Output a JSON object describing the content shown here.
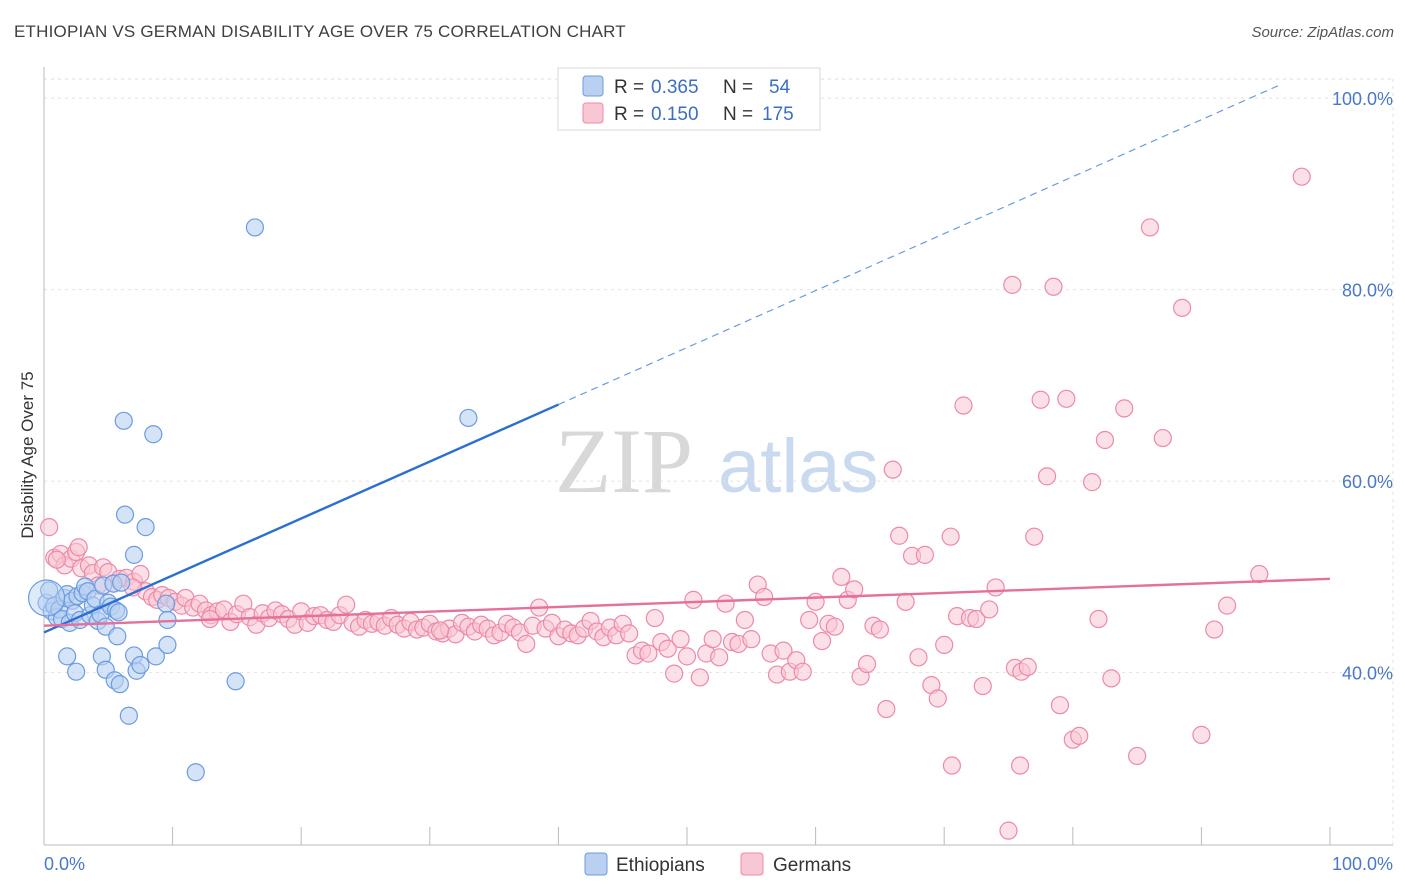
{
  "header": {
    "title": "ETHIOPIAN VS GERMAN DISABILITY AGE OVER 75 CORRELATION CHART",
    "source": "Source: ZipAtlas.com"
  },
  "watermark": {
    "zip": "ZIP",
    "atlas": "atlas"
  },
  "chart_data": {
    "type": "scatter",
    "ylabel": "Disability Age Over 75",
    "xlim": [
      0,
      100
    ],
    "ylim": [
      22,
      102
    ],
    "x_tick_labels": [
      "0.0%",
      "100.0%"
    ],
    "y_ticks": [
      40,
      60,
      80,
      100
    ],
    "y_tick_labels": [
      "40.0%",
      "60.0%",
      "80.0%",
      "100.0%"
    ],
    "grid": true,
    "legend_position": "top-center",
    "legend": [
      {
        "r_label": "R =",
        "r_value": "0.365",
        "n_label": "N =",
        "n_value": "54"
      },
      {
        "r_label": "R =",
        "r_value": "0.150",
        "n_label": "N =",
        "n_value": "175"
      }
    ],
    "series": [
      {
        "name": "Ethiopians",
        "color": "#6c9be0",
        "fill": "#b9d0f1",
        "trend": {
          "x0": 0,
          "y0": 44.2,
          "x1": 40,
          "y1": 68.0,
          "dash_to_x": 100,
          "dash_to_y": 103.7,
          "color": "#2b6fd0"
        },
        "points": [
          [
            0.2,
            47.3
          ],
          [
            0.4,
            48.6
          ],
          [
            0.6,
            46.4
          ],
          [
            0.8,
            47.0
          ],
          [
            1.0,
            45.8
          ],
          [
            1.2,
            46.6
          ],
          [
            1.4,
            45.6
          ],
          [
            1.6,
            47.8
          ],
          [
            1.8,
            48.2
          ],
          [
            2.0,
            45.2
          ],
          [
            2.2,
            47.5
          ],
          [
            2.4,
            46.2
          ],
          [
            2.6,
            48.0
          ],
          [
            2.8,
            45.5
          ],
          [
            3.0,
            48.3
          ],
          [
            3.2,
            49.0
          ],
          [
            3.4,
            48.5
          ],
          [
            3.6,
            46.0
          ],
          [
            3.8,
            47.0
          ],
          [
            4.0,
            47.7
          ],
          [
            4.2,
            45.4
          ],
          [
            4.4,
            46.1
          ],
          [
            4.6,
            49.1
          ],
          [
            4.8,
            44.8
          ],
          [
            5.0,
            47.3
          ],
          [
            5.2,
            46.9
          ],
          [
            5.4,
            49.3
          ],
          [
            5.6,
            46.5
          ],
          [
            5.8,
            46.3
          ],
          [
            6.0,
            49.4
          ],
          [
            1.8,
            41.7
          ],
          [
            2.5,
            40.1
          ],
          [
            4.5,
            41.7
          ],
          [
            4.8,
            40.3
          ],
          [
            5.5,
            39.2
          ],
          [
            5.9,
            38.8
          ],
          [
            6.6,
            35.5
          ],
          [
            7.2,
            40.2
          ],
          [
            7.0,
            41.8
          ],
          [
            7.5,
            40.8
          ],
          [
            8.7,
            41.7
          ],
          [
            9.6,
            42.9
          ],
          [
            11.8,
            29.6
          ],
          [
            14.9,
            39.1
          ],
          [
            6.3,
            56.5
          ],
          [
            7.9,
            55.2
          ],
          [
            7.0,
            52.3
          ],
          [
            6.2,
            66.3
          ],
          [
            8.5,
            64.9
          ],
          [
            16.4,
            86.5
          ],
          [
            33.0,
            66.6
          ],
          [
            9.5,
            47.2
          ],
          [
            9.6,
            45.5
          ],
          [
            5.7,
            43.8
          ]
        ]
      },
      {
        "name": "Germans",
        "color": "#ec8aa8",
        "fill": "#f9c6d4",
        "trend": {
          "x0": 0,
          "y0": 44.9,
          "x1": 100,
          "y1": 49.8,
          "color": "#e5709a"
        },
        "points": [
          [
            0.4,
            55.2
          ],
          [
            0.8,
            52.0
          ],
          [
            1.3,
            52.4
          ],
          [
            1.6,
            51.2
          ],
          [
            2.1,
            51.9
          ],
          [
            2.5,
            52.6
          ],
          [
            2.9,
            50.9
          ],
          [
            3.5,
            51.2
          ],
          [
            3.8,
            50.4
          ],
          [
            4.2,
            49.1
          ],
          [
            4.6,
            51.0
          ],
          [
            5.0,
            50.5
          ],
          [
            5.4,
            49.3
          ],
          [
            5.9,
            49.8
          ],
          [
            6.4,
            49.9
          ],
          [
            7.0,
            49.5
          ],
          [
            7.5,
            50.3
          ],
          [
            7.9,
            48.5
          ],
          [
            8.4,
            47.9
          ],
          [
            8.8,
            47.6
          ],
          [
            9.2,
            48.1
          ],
          [
            9.7,
            47.8
          ],
          [
            10.2,
            47.4
          ],
          [
            10.7,
            47.0
          ],
          [
            11.0,
            47.8
          ],
          [
            11.6,
            46.8
          ],
          [
            12.1,
            47.2
          ],
          [
            12.6,
            46.5
          ],
          [
            13.0,
            46.0
          ],
          [
            13.5,
            46.4
          ],
          [
            14.0,
            46.6
          ],
          [
            14.5,
            45.3
          ],
          [
            15.0,
            46.1
          ],
          [
            15.5,
            47.2
          ],
          [
            16.0,
            45.8
          ],
          [
            16.5,
            45.0
          ],
          [
            17.0,
            46.2
          ],
          [
            17.5,
            45.7
          ],
          [
            18.0,
            46.5
          ],
          [
            18.5,
            46.1
          ],
          [
            19.0,
            45.6
          ],
          [
            19.5,
            45.0
          ],
          [
            20.0,
            46.4
          ],
          [
            20.5,
            45.2
          ],
          [
            21.0,
            45.9
          ],
          [
            21.5,
            46.0
          ],
          [
            22.0,
            45.5
          ],
          [
            22.5,
            45.3
          ],
          [
            23.0,
            46.0
          ],
          [
            23.5,
            47.1
          ],
          [
            24.0,
            45.2
          ],
          [
            24.5,
            44.8
          ],
          [
            25.0,
            45.5
          ],
          [
            25.5,
            45.1
          ],
          [
            26.0,
            45.3
          ],
          [
            26.5,
            44.9
          ],
          [
            27.0,
            45.7
          ],
          [
            27.5,
            45.0
          ],
          [
            28.0,
            44.6
          ],
          [
            28.5,
            45.3
          ],
          [
            29.0,
            44.5
          ],
          [
            29.5,
            44.7
          ],
          [
            30.0,
            45.1
          ],
          [
            30.5,
            44.3
          ],
          [
            31.0,
            44.1
          ],
          [
            31.5,
            44.6
          ],
          [
            32.0,
            44.0
          ],
          [
            32.5,
            45.2
          ],
          [
            33.0,
            44.8
          ],
          [
            33.5,
            44.3
          ],
          [
            34.0,
            45.0
          ],
          [
            34.5,
            44.6
          ],
          [
            35.0,
            43.9
          ],
          [
            35.5,
            44.2
          ],
          [
            36.0,
            45.1
          ],
          [
            36.5,
            44.7
          ],
          [
            37.0,
            44.2
          ],
          [
            37.5,
            43.0
          ],
          [
            38.0,
            44.9
          ],
          [
            38.5,
            46.8
          ],
          [
            39.0,
            44.6
          ],
          [
            39.5,
            45.2
          ],
          [
            40.0,
            43.8
          ],
          [
            40.5,
            44.5
          ],
          [
            41.0,
            44.1
          ],
          [
            41.5,
            43.9
          ],
          [
            42.0,
            44.6
          ],
          [
            42.5,
            45.4
          ],
          [
            43.0,
            44.3
          ],
          [
            43.5,
            43.7
          ],
          [
            44.0,
            44.7
          ],
          [
            44.5,
            43.9
          ],
          [
            45.0,
            45.1
          ],
          [
            45.5,
            44.1
          ],
          [
            46.0,
            41.8
          ],
          [
            46.5,
            42.3
          ],
          [
            47.0,
            42.0
          ],
          [
            47.5,
            45.7
          ],
          [
            48.0,
            43.2
          ],
          [
            48.5,
            42.5
          ],
          [
            49.0,
            39.9
          ],
          [
            49.5,
            43.5
          ],
          [
            50.0,
            41.7
          ],
          [
            50.5,
            47.6
          ],
          [
            51.0,
            39.5
          ],
          [
            51.5,
            42.0
          ],
          [
            52.0,
            43.5
          ],
          [
            52.5,
            41.6
          ],
          [
            53.0,
            47.2
          ],
          [
            53.5,
            43.2
          ],
          [
            54.0,
            43.0
          ],
          [
            54.5,
            45.5
          ],
          [
            55.0,
            43.5
          ],
          [
            55.5,
            49.2
          ],
          [
            56.0,
            47.9
          ],
          [
            56.5,
            42.0
          ],
          [
            57.0,
            39.8
          ],
          [
            57.5,
            42.3
          ],
          [
            58.0,
            40.1
          ],
          [
            58.5,
            41.3
          ],
          [
            59.0,
            40.1
          ],
          [
            59.5,
            45.5
          ],
          [
            60.0,
            47.4
          ],
          [
            60.5,
            43.3
          ],
          [
            61.0,
            45.1
          ],
          [
            61.5,
            44.8
          ],
          [
            62.0,
            50.0
          ],
          [
            62.5,
            47.6
          ],
          [
            63.0,
            48.7
          ],
          [
            63.5,
            39.6
          ],
          [
            64.0,
            40.9
          ],
          [
            64.5,
            44.9
          ],
          [
            65.0,
            44.5
          ],
          [
            65.5,
            36.2
          ],
          [
            66.0,
            61.2
          ],
          [
            66.5,
            54.3
          ],
          [
            67.0,
            47.4
          ],
          [
            67.5,
            52.2
          ],
          [
            68.0,
            41.6
          ],
          [
            68.5,
            52.3
          ],
          [
            69.0,
            38.7
          ],
          [
            69.5,
            37.3
          ],
          [
            70.0,
            42.9
          ],
          [
            70.5,
            54.2
          ],
          [
            71.0,
            45.9
          ],
          [
            71.5,
            67.9
          ],
          [
            72.0,
            45.7
          ],
          [
            72.5,
            45.6
          ],
          [
            73.0,
            38.6
          ],
          [
            73.5,
            46.6
          ],
          [
            74.0,
            48.9
          ],
          [
            75.0,
            23.5
          ],
          [
            75.5,
            40.5
          ],
          [
            76.0,
            40.1
          ],
          [
            76.5,
            40.6
          ],
          [
            77.0,
            54.2
          ],
          [
            77.5,
            68.5
          ],
          [
            78.0,
            60.5
          ],
          [
            79.0,
            36.6
          ],
          [
            79.5,
            68.6
          ],
          [
            80.0,
            33.0
          ],
          [
            80.5,
            33.4
          ],
          [
            81.5,
            59.9
          ],
          [
            82.0,
            45.6
          ],
          [
            82.5,
            64.3
          ],
          [
            83.0,
            39.4
          ],
          [
            84.0,
            67.6
          ],
          [
            85.0,
            31.3
          ],
          [
            86.0,
            86.5
          ],
          [
            87.0,
            64.5
          ],
          [
            88.5,
            78.1
          ],
          [
            90.0,
            33.5
          ],
          [
            91.0,
            44.5
          ],
          [
            92.0,
            47.0
          ],
          [
            94.5,
            50.3
          ],
          [
            75.3,
            80.5
          ],
          [
            75.9,
            30.3
          ],
          [
            78.5,
            80.3
          ],
          [
            97.8,
            91.8
          ],
          [
            70.6,
            30.3
          ],
          [
            1.0,
            51.8
          ],
          [
            2.7,
            53.1
          ],
          [
            6.9,
            48.9
          ],
          [
            12.9,
            45.6
          ],
          [
            30.8,
            44.4
          ]
        ]
      }
    ]
  }
}
